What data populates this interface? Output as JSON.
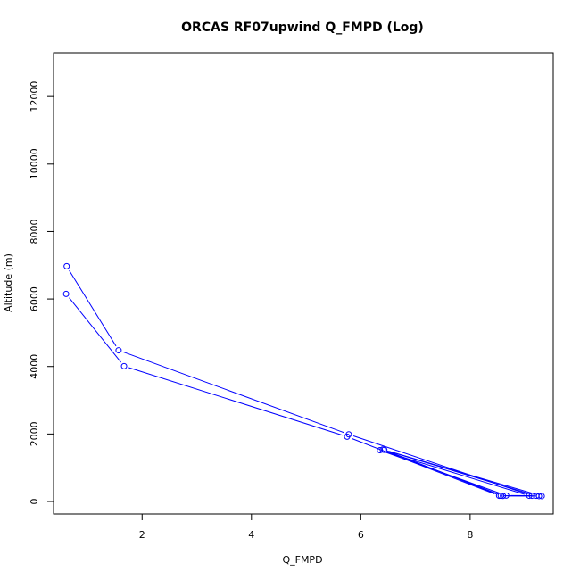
{
  "chart_data": {
    "type": "line",
    "title": "ORCAS RF07upwind Q_FMPD (Log)",
    "xlabel": "Q_FMPD",
    "ylabel": "Altitude (m)",
    "xlim": [
      0.38,
      9.52
    ],
    "ylim": [
      -370,
      13300
    ],
    "x_ticks": [
      2,
      4,
      6,
      8
    ],
    "x_tick_labels": [
      "2",
      "4",
      "6",
      "8"
    ],
    "y_ticks": [
      0,
      2000,
      4000,
      6000,
      8000,
      10000,
      12000
    ],
    "y_tick_labels": [
      "0",
      "2000",
      "4000",
      "6000",
      "8000",
      "10000",
      "12000"
    ],
    "grid": false,
    "legend": "none",
    "marker": "open-circle",
    "series": [
      {
        "color": "#0000ff",
        "points": [
          {
            "x": 0.62,
            "y": 6970
          },
          {
            "x": 1.57,
            "y": 4480
          },
          {
            "x": 5.78,
            "y": 1990
          },
          {
            "x": 9.13,
            "y": 170
          },
          {
            "x": 9.26,
            "y": 160
          },
          {
            "x": 8.56,
            "y": 170
          },
          {
            "x": 6.43,
            "y": 1530
          },
          {
            "x": 9.31,
            "y": 160
          },
          {
            "x": 8.6,
            "y": 165
          },
          {
            "x": 6.4,
            "y": 1540
          },
          {
            "x": 9.21,
            "y": 170
          },
          {
            "x": 8.66,
            "y": 175
          },
          {
            "x": 6.35,
            "y": 1520
          },
          {
            "x": 9.08,
            "y": 170
          },
          {
            "x": 8.53,
            "y": 170
          },
          {
            "x": 5.75,
            "y": 1920
          },
          {
            "x": 1.67,
            "y": 4010
          },
          {
            "x": 0.61,
            "y": 6150
          }
        ]
      }
    ]
  }
}
